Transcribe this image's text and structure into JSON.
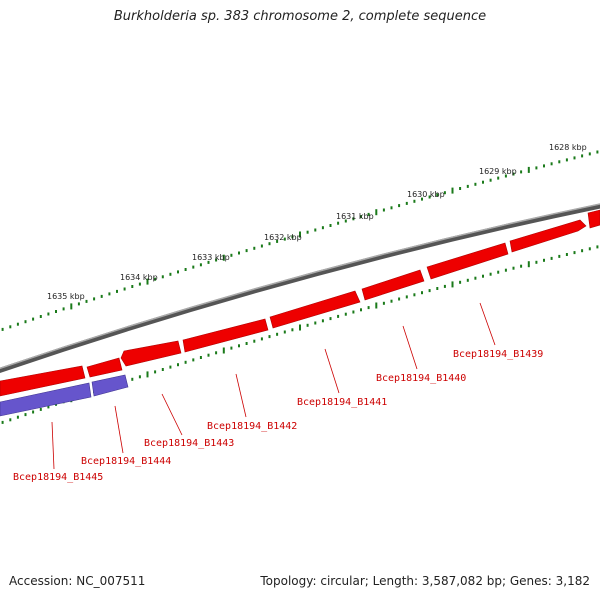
{
  "title": "Burkholderia sp. 383 chromosome 2, complete sequence",
  "footer": {
    "accession": "Accession: NC_007511",
    "topology": "Topology: circular; Length: 3,587,082 bp; Genes: 3,182"
  },
  "scale_ticks": [
    "1628 kbp",
    "1629 kbp",
    "1630 kbp",
    "1631 kbp",
    "1632 kbp",
    "1633 kbp",
    "1634 kbp",
    "1635 kbp"
  ],
  "genes": [
    {
      "name": "Bcep18194_B1439",
      "strand": "forward",
      "color": "#ee0000"
    },
    {
      "name": "Bcep18194_B1440",
      "strand": "forward",
      "color": "#ee0000"
    },
    {
      "name": "Bcep18194_B1441",
      "strand": "forward",
      "color": "#ee0000"
    },
    {
      "name": "Bcep18194_B1442",
      "strand": "forward",
      "color": "#ee0000"
    },
    {
      "name": "Bcep18194_B1443",
      "strand": "forward",
      "color": "#ee0000"
    },
    {
      "name": "Bcep18194_B1444",
      "strand": "forward",
      "color": "#6655cc"
    },
    {
      "name": "Bcep18194_B1445",
      "strand": "forward",
      "color": "#6655cc"
    }
  ],
  "colors": {
    "backbone": "#808080",
    "tick_green": "#1a7a1a",
    "gene_red": "#ee0000",
    "gene_blue": "#6655cc",
    "label_red": "#cc0000"
  }
}
